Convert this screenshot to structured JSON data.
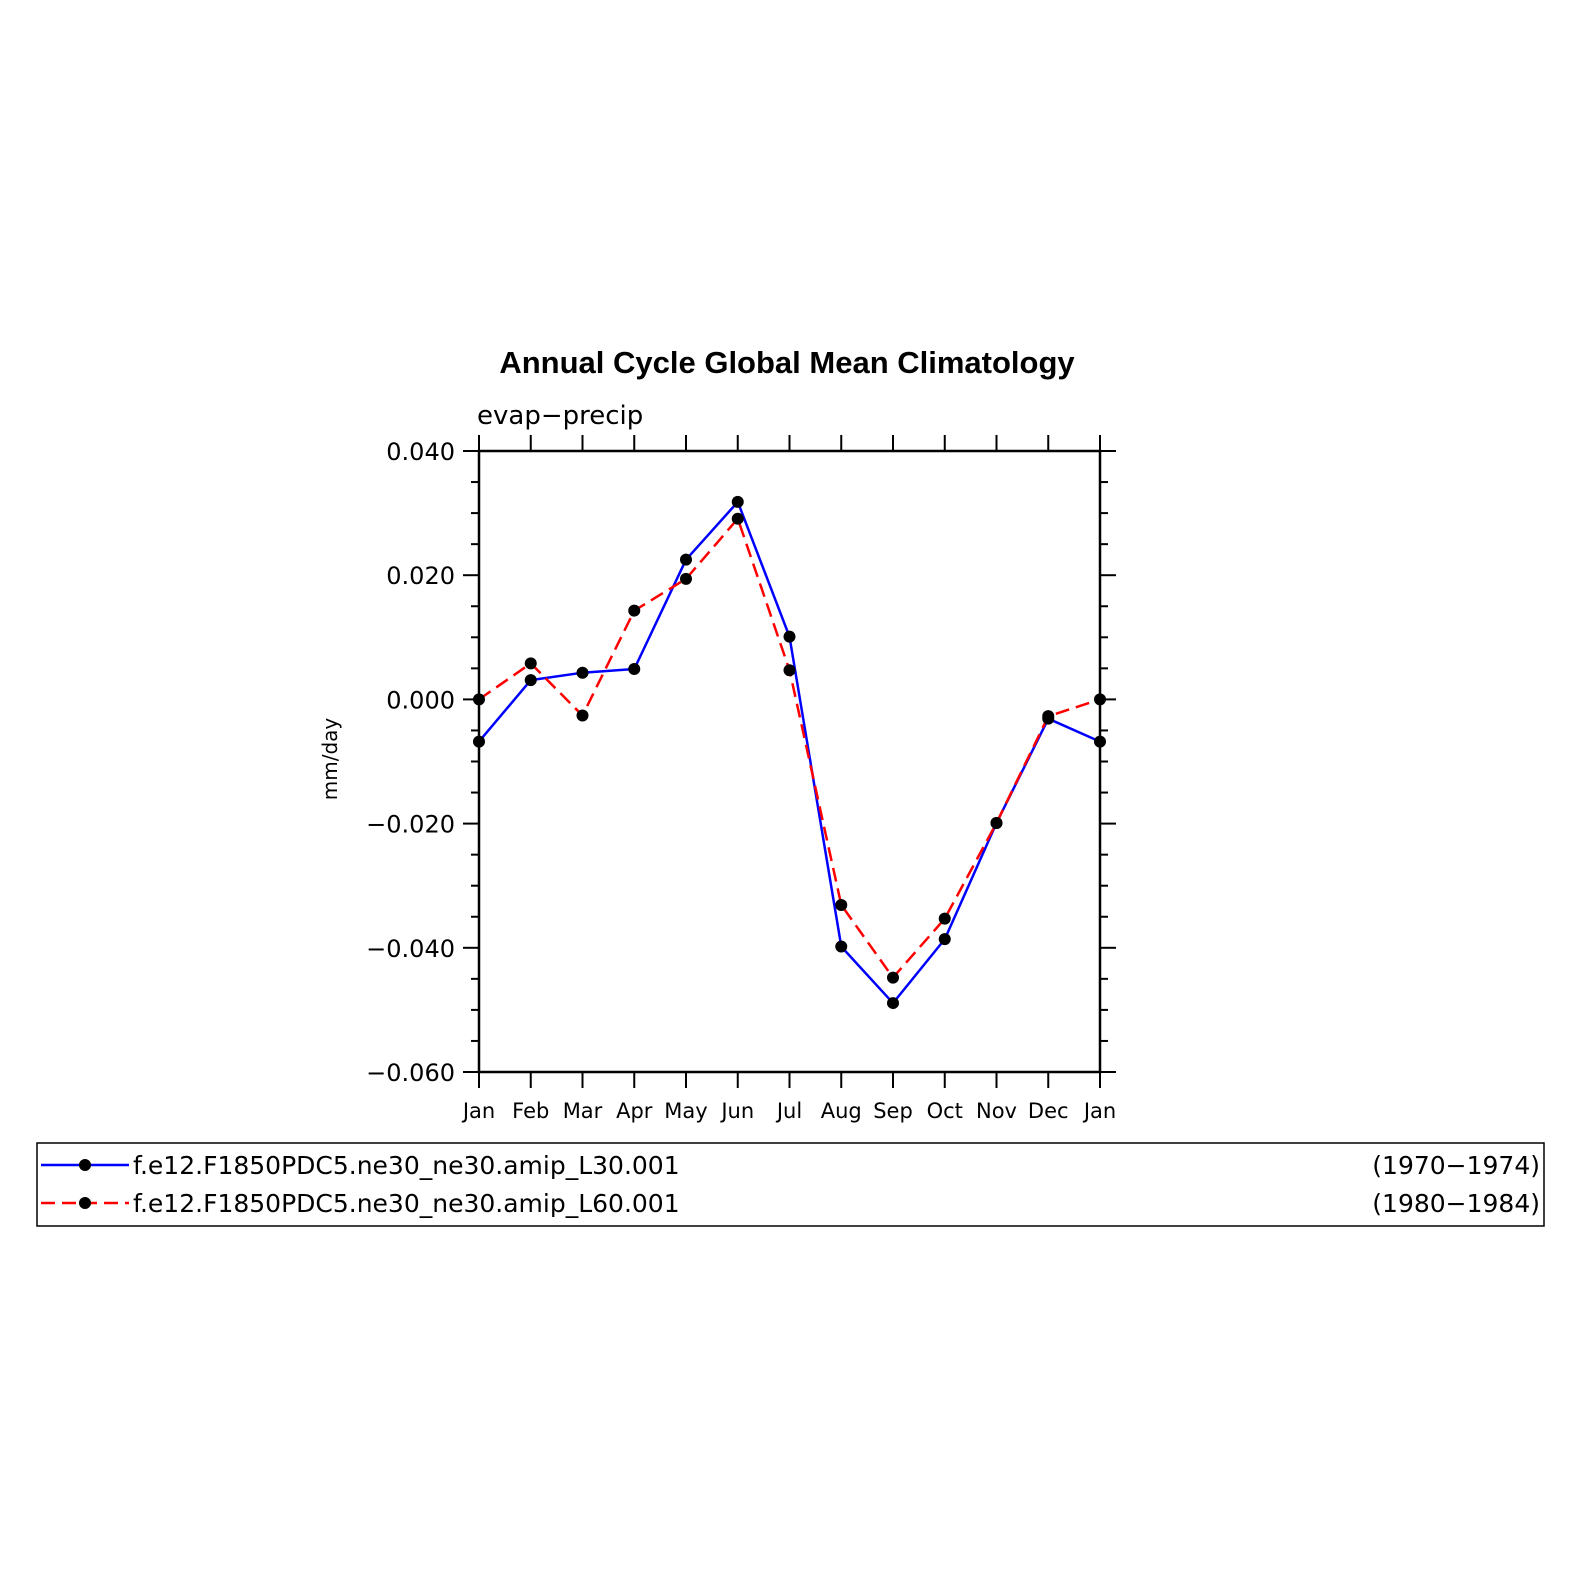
{
  "chart_data": {
    "type": "line",
    "title": "Annual Cycle Global Mean Climatology",
    "subtitle": "evap−precip",
    "xlabel": "",
    "ylabel": "mm/day",
    "categories": [
      "Jan",
      "Feb",
      "Mar",
      "Apr",
      "May",
      "Jun",
      "Jul",
      "Aug",
      "Sep",
      "Oct",
      "Nov",
      "Dec",
      "Jan"
    ],
    "yticks": [
      0.04,
      0.02,
      0.0,
      -0.02,
      -0.04,
      -0.06
    ],
    "ytick_labels": [
      "0.040",
      "0.020",
      "0.000",
      "−0.020",
      "−0.040",
      "−0.060"
    ],
    "ylim": [
      -0.06,
      0.04
    ],
    "grid": false,
    "legend_position": "bottom",
    "series": [
      {
        "name": "f.e12.F1850PDC5.ne30_ne30.amip_L30.001",
        "period": "(1970−1974)",
        "color": "#0000ff",
        "dash": "solid",
        "values": [
          -0.0068,
          0.0031,
          0.0043,
          0.0049,
          0.0225,
          0.0318,
          0.0101,
          -0.0398,
          -0.0489,
          -0.0386,
          -0.0199,
          -0.0031,
          -0.0068
        ]
      },
      {
        "name": "f.e12.F1850PDC5.ne30_ne30.amip_L60.001",
        "period": "(1980−1984)",
        "color": "#ff0000",
        "dash": "dashed",
        "values": [
          0.0,
          0.0058,
          -0.0026,
          0.0143,
          0.0194,
          0.0291,
          0.0047,
          -0.0331,
          -0.0448,
          -0.0353,
          -0.0199,
          -0.0027,
          0.0
        ]
      }
    ]
  }
}
